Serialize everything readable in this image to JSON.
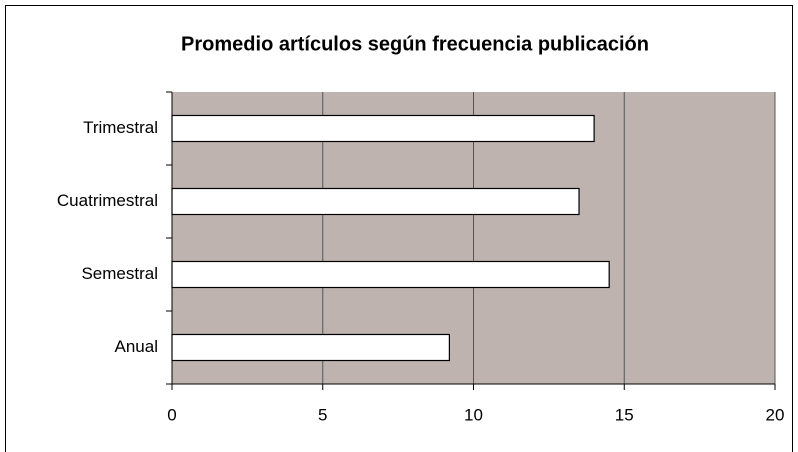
{
  "chart_data": {
    "type": "bar",
    "orientation": "horizontal",
    "title": "Promedio artículos según frecuencia publicación",
    "categories": [
      "Trimestral",
      "Cuatrimestral",
      "Semestral",
      "Anual"
    ],
    "values": [
      14,
      13.5,
      14.5,
      9.2
    ],
    "color": "#ffffff",
    "plot_background": "#bfb3af",
    "xlim": [
      0,
      20
    ],
    "xticks": [
      0,
      5,
      10,
      15,
      20
    ],
    "grid": true
  }
}
